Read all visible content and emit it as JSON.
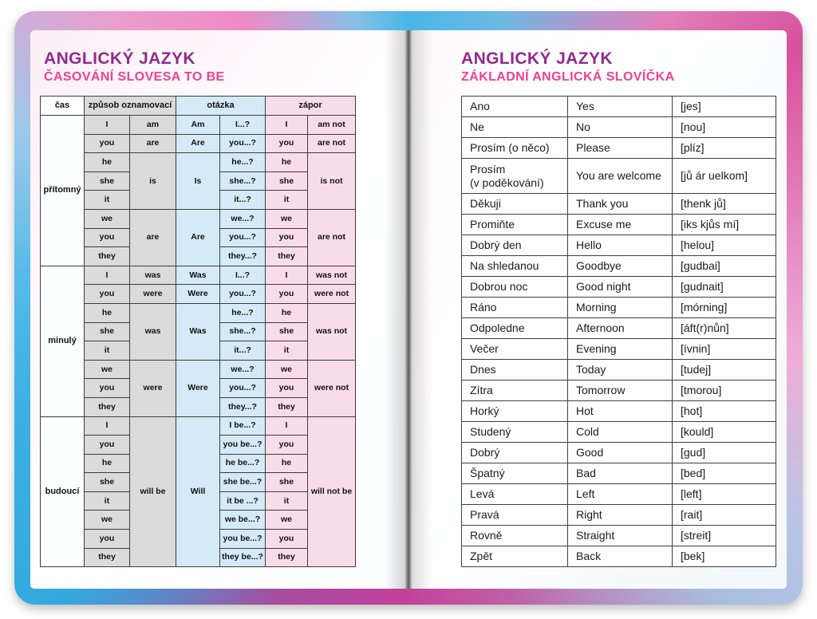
{
  "left_page": {
    "title": "ANGLICKÝ JAZYK",
    "subtitle": "ČASOVÁNÍ SLOVESA TO BE",
    "table": {
      "headers": [
        {
          "label": "čas",
          "colspan": 1
        },
        {
          "label": "způsob oznamovací",
          "colspan": 2
        },
        {
          "label": "otázka",
          "colspan": 2
        },
        {
          "label": "zápor",
          "colspan": 2
        }
      ],
      "sections": [
        {
          "tense": "přítomný",
          "groups": [
            {
              "pronouns": [
                "I"
              ],
              "statement": "am",
              "q_aux": "Am",
              "questions": [
                "I...?"
              ],
              "negative": "am not"
            },
            {
              "pronouns": [
                "you"
              ],
              "statement": "are",
              "q_aux": "Are",
              "questions": [
                "you...?"
              ],
              "negative": "are not"
            },
            {
              "pronouns": [
                "he",
                "she",
                "it"
              ],
              "statement": "is",
              "q_aux": "Is",
              "questions": [
                "he...?",
                "she...?",
                "it...?"
              ],
              "negative": "is not"
            },
            {
              "pronouns": [
                "we",
                "you",
                "they"
              ],
              "statement": "are",
              "q_aux": "Are",
              "questions": [
                "we...?",
                "you...?",
                "they...?"
              ],
              "negative": "are not"
            }
          ]
        },
        {
          "tense": "minulý",
          "groups": [
            {
              "pronouns": [
                "I"
              ],
              "statement": "was",
              "q_aux": "Was",
              "questions": [
                "I...?"
              ],
              "negative": "was not"
            },
            {
              "pronouns": [
                "you"
              ],
              "statement": "were",
              "q_aux": "Were",
              "questions": [
                "you...?"
              ],
              "negative": "were not"
            },
            {
              "pronouns": [
                "he",
                "she",
                "it"
              ],
              "statement": "was",
              "q_aux": "Was",
              "questions": [
                "he...?",
                "she...?",
                "it...?"
              ],
              "negative": "was not"
            },
            {
              "pronouns": [
                "we",
                "you",
                "they"
              ],
              "statement": "were",
              "q_aux": "Were",
              "questions": [
                "we...?",
                "you...?",
                "they...?"
              ],
              "negative": "were not"
            }
          ]
        },
        {
          "tense": "budoucí",
          "groups": [
            {
              "pronouns": [
                "I",
                "you",
                "he",
                "she",
                "it",
                "we",
                "you",
                "they"
              ],
              "statement": "will be",
              "q_aux": "Will",
              "questions": [
                "I be...?",
                "you be...?",
                "he be...?",
                "she be...?",
                "it be ...?",
                "we be...?",
                "you be...?",
                "they be...?"
              ],
              "negative": "will not be"
            }
          ]
        }
      ]
    }
  },
  "right_page": {
    "title": "ANGLICKÝ JAZYK",
    "subtitle": "ZÁKLADNÍ ANGLICKÁ SLOVÍČKA",
    "vocab": [
      {
        "cz": "Ano",
        "en": "Yes",
        "pron": "[jes]"
      },
      {
        "cz": "Ne",
        "en": "No",
        "pron": "[nou]"
      },
      {
        "cz": "Prosím (o něco)",
        "en": "Please",
        "pron": "[plíz]"
      },
      {
        "cz": "Prosím\n(v poděkování)",
        "en": "You are welcome",
        "pron": "[jů ár uelkom]"
      },
      {
        "cz": "Děkuji",
        "en": "Thank you",
        "pron": "[thenk jů]"
      },
      {
        "cz": "Promiňte",
        "en": "Excuse me",
        "pron": "[iks kjůs mí]"
      },
      {
        "cz": "Dobrý den",
        "en": "Hello",
        "pron": "[helou]"
      },
      {
        "cz": "Na shledanou",
        "en": "Goodbye",
        "pron": "[gudbai]"
      },
      {
        "cz": "Dobrou noc",
        "en": "Good night",
        "pron": "[gudnait]"
      },
      {
        "cz": "Ráno",
        "en": "Morning",
        "pron": "[mórning]"
      },
      {
        "cz": "Odpoledne",
        "en": "Afternoon",
        "pron": "[áft(r)nůn]"
      },
      {
        "cz": "Večer",
        "en": "Evening",
        "pron": "[ívnin]"
      },
      {
        "cz": "Dnes",
        "en": "Today",
        "pron": "[tudej]"
      },
      {
        "cz": "Zítra",
        "en": "Tomorrow",
        "pron": "[tmorou]"
      },
      {
        "cz": "Horký",
        "en": "Hot",
        "pron": "[hot]"
      },
      {
        "cz": "Studený",
        "en": "Cold",
        "pron": "[kould]"
      },
      {
        "cz": "Dobrý",
        "en": "Good",
        "pron": "[gud]"
      },
      {
        "cz": "Špatný",
        "en": "Bad",
        "pron": "[bed]"
      },
      {
        "cz": "Levá",
        "en": "Left",
        "pron": "[left]"
      },
      {
        "cz": "Pravá",
        "en": "Right",
        "pron": "[rait]"
      },
      {
        "cz": "Rovně",
        "en": "Straight",
        "pron": "[streit]"
      },
      {
        "cz": "Zpět",
        "en": "Back",
        "pron": "[bek]"
      }
    ]
  },
  "colors": {
    "title_purple": "#8f2b8c",
    "subtitle_pink": "#ee4193",
    "cell_gray": "#dbdbdb",
    "cell_blue": "#d4eaf7",
    "cell_pink": "#f9dcea",
    "table_border": "#3d3d3d",
    "cover_pink": "#ee8ac4",
    "cover_magenta": "#c2409a",
    "cover_blue": "#3cb0e3",
    "cover_periwinkle": "#a9c0e2"
  }
}
